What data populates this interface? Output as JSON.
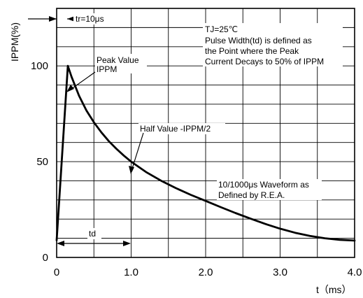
{
  "chart_data": {
    "type": "line",
    "title": "",
    "xlabel": "t（ms）",
    "ylabel": "IPPM(%)",
    "xlim": [
      0,
      4.0
    ],
    "ylim": [
      0,
      130
    ],
    "grid": true,
    "x_ticks": [
      {
        "value": 0,
        "label": "0"
      },
      {
        "value": 1,
        "label": "1.0"
      },
      {
        "value": 2,
        "label": "2.0"
      },
      {
        "value": 3,
        "label": "3.0"
      },
      {
        "value": 4,
        "label": "4.0"
      }
    ],
    "y_ticks": [
      {
        "value": 0,
        "label": "0"
      },
      {
        "value": 50,
        "label": "50"
      },
      {
        "value": 100,
        "label": "100"
      }
    ],
    "series": [
      {
        "x": [
          0,
          0.15,
          0.2,
          0.3,
          0.4,
          0.5,
          0.6,
          0.7,
          0.8,
          0.9,
          1.0,
          1.2,
          1.4,
          1.6,
          1.8,
          2.0,
          2.2,
          2.4,
          2.6,
          2.8,
          3.0,
          3.2,
          3.4,
          3.6,
          3.8,
          4.0
        ],
        "y": [
          9,
          100,
          94.3,
          84.4,
          76.7,
          70.5,
          65.3,
          60.7,
          56.8,
          53.2,
          50,
          44.6,
          40.1,
          36.2,
          32.7,
          29.5,
          26.3,
          23.2,
          20.3,
          17.5,
          15,
          12.9,
          11.2,
          10,
          9.2,
          8.8
        ]
      }
    ],
    "annotations": {
      "tr_label": "tr=10μs",
      "td_label": "td",
      "peak_label_1": "Peak Value",
      "peak_label_2": "IPPM",
      "half_label": "Half Value -IPPM/2",
      "waveform_label_1": "10/1000μs Waveform as",
      "waveform_label_2": "Defined by R.E.A.",
      "note_lines": [
        "TJ=25℃",
        "Pulse Width(td) is defined as",
        "the Point where the Peak",
        "Current Decays to 50% of IPPM"
      ]
    }
  }
}
